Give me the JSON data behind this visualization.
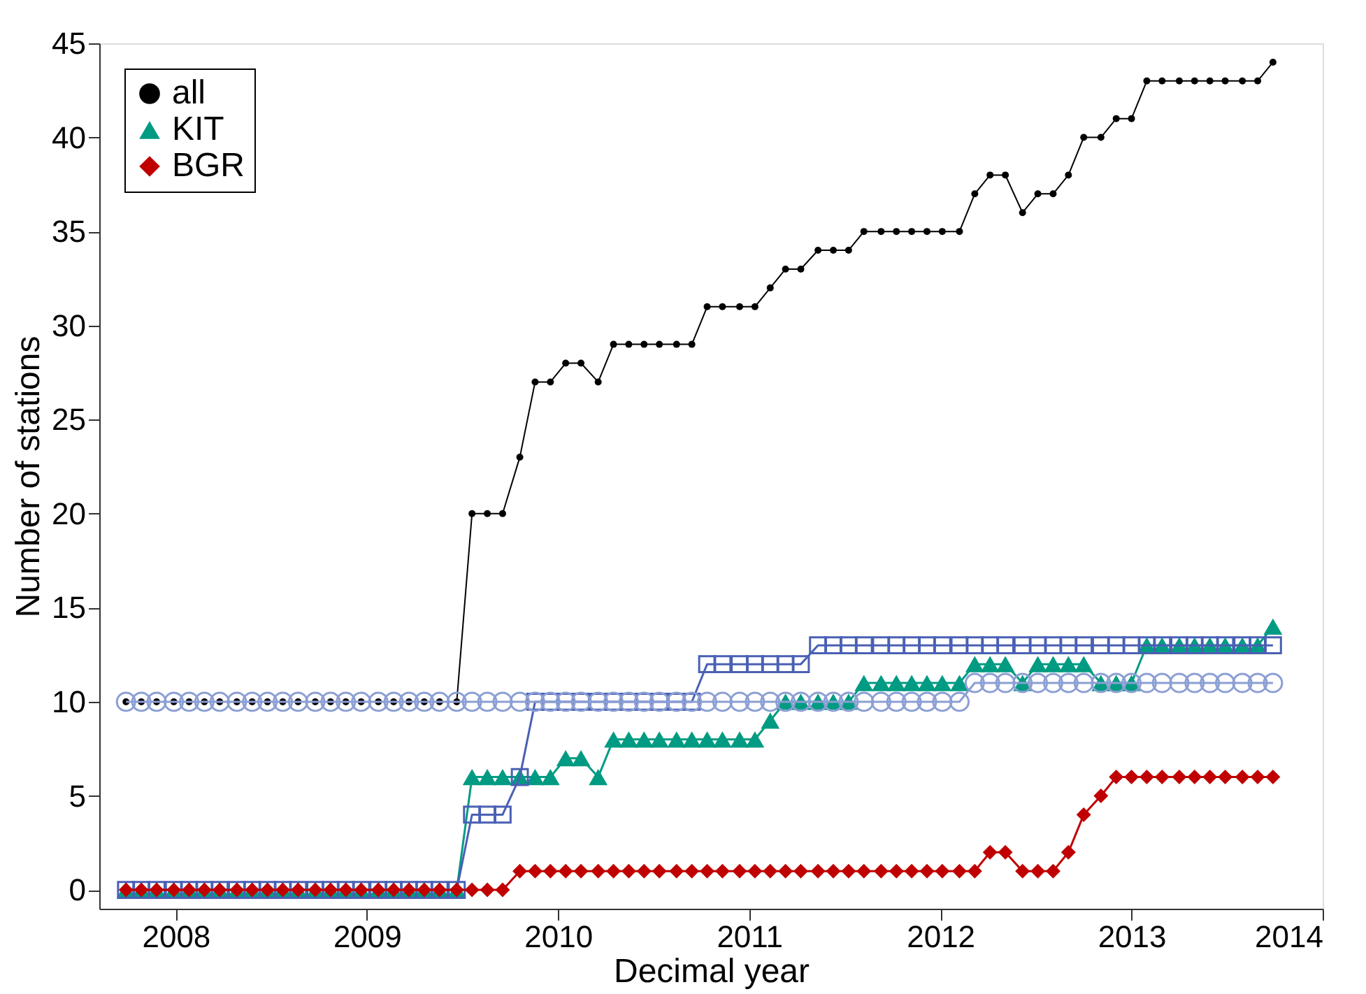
{
  "chart_data": {
    "type": "line",
    "xlabel": "Decimal year",
    "ylabel": "Number of stations",
    "x": [
      2007.74,
      2007.82,
      2007.9,
      2007.99,
      2008.07,
      2008.15,
      2008.23,
      2008.32,
      2008.4,
      2008.48,
      2008.56,
      2008.64,
      2008.73,
      2008.81,
      2008.89,
      2008.97,
      2009.06,
      2009.14,
      2009.22,
      2009.3,
      2009.38,
      2009.47,
      2009.55,
      2009.63,
      2009.71,
      2009.8,
      2009.88,
      2009.96,
      2010.04,
      2010.12,
      2010.21,
      2010.29,
      2010.37,
      2010.45,
      2010.53,
      2010.62,
      2010.7,
      2010.78,
      2010.86,
      2010.95,
      2011.03,
      2011.11,
      2011.19,
      2011.27,
      2011.36,
      2011.44,
      2011.52,
      2011.6,
      2011.69,
      2011.77,
      2011.85,
      2011.93,
      2012.01,
      2012.1,
      2012.18,
      2012.26,
      2012.34,
      2012.43,
      2012.51,
      2012.59,
      2012.67,
      2012.75,
      2012.84,
      2012.92,
      2013.0,
      2013.08,
      2013.16,
      2013.25,
      2013.33,
      2013.41,
      2013.49,
      2013.58,
      2013.66,
      2013.74
    ],
    "series": [
      {
        "name": "all",
        "color": "#000000",
        "marker": "circle",
        "values": [
          10,
          10,
          10,
          10,
          10,
          10,
          10,
          10,
          10,
          10,
          10,
          10,
          10,
          10,
          10,
          10,
          10,
          10,
          10,
          10,
          10,
          10,
          20,
          20,
          20,
          23,
          27,
          27,
          28,
          28,
          27,
          29,
          29,
          29,
          29,
          29,
          29,
          31,
          31,
          31,
          31,
          32,
          33,
          33,
          34,
          34,
          34,
          35,
          35,
          35,
          35,
          35,
          35,
          35,
          37,
          38,
          38,
          36,
          37,
          37,
          38,
          40,
          40,
          41,
          41,
          43,
          43,
          43,
          43,
          43,
          43,
          43,
          43,
          44
        ]
      },
      {
        "name": "KIT",
        "color": "#009b82",
        "marker": "triangle",
        "values": [
          0,
          0,
          0,
          0,
          0,
          0,
          0,
          0,
          0,
          0,
          0,
          0,
          0,
          0,
          0,
          0,
          0,
          0,
          0,
          0,
          0,
          0,
          6,
          6,
          6,
          6,
          6,
          6,
          7,
          7,
          6,
          8,
          8,
          8,
          8,
          8,
          8,
          8,
          8,
          8,
          8,
          9,
          10,
          10,
          10,
          10,
          10,
          11,
          11,
          11,
          11,
          11,
          11,
          11,
          12,
          12,
          12,
          11,
          12,
          12,
          12,
          12,
          11,
          11,
          11,
          13,
          13,
          13,
          13,
          13,
          13,
          13,
          13,
          14
        ]
      },
      {
        "color": "#4a60b4",
        "marker": "square",
        "values": [
          0,
          0,
          0,
          0,
          0,
          0,
          0,
          0,
          0,
          0,
          0,
          0,
          0,
          0,
          0,
          0,
          0,
          0,
          0,
          0,
          0,
          0,
          4,
          4,
          4,
          6,
          10,
          10,
          10,
          10,
          10,
          10,
          10,
          10,
          10,
          10,
          10,
          12,
          12,
          12,
          12,
          12,
          12,
          12,
          13,
          13,
          13,
          13,
          13,
          13,
          13,
          13,
          13,
          13,
          13,
          13,
          13,
          13,
          13,
          13,
          13,
          13,
          13,
          13,
          13,
          13,
          13,
          13,
          13,
          13,
          13,
          13,
          13,
          13
        ]
      },
      {
        "color": "#8c9fd4",
        "marker": "circle",
        "values": [
          10,
          10,
          10,
          10,
          10,
          10,
          10,
          10,
          10,
          10,
          10,
          10,
          10,
          10,
          10,
          10,
          10,
          10,
          10,
          10,
          10,
          10,
          10,
          10,
          10,
          10,
          10,
          10,
          10,
          10,
          10,
          10,
          10,
          10,
          10,
          10,
          10,
          10,
          10,
          10,
          10,
          10,
          10,
          10,
          10,
          10,
          10,
          10,
          10,
          10,
          10,
          10,
          10,
          10,
          11,
          11,
          11,
          11,
          11,
          11,
          11,
          11,
          11,
          11,
          11,
          11,
          11,
          11,
          11,
          11,
          11,
          11,
          11,
          11
        ]
      },
      {
        "name": "BGR",
        "color": "#c00000",
        "marker": "diamond",
        "values": [
          0,
          0,
          0,
          0,
          0,
          0,
          0,
          0,
          0,
          0,
          0,
          0,
          0,
          0,
          0,
          0,
          0,
          0,
          0,
          0,
          0,
          0,
          0,
          0,
          0,
          1,
          1,
          1,
          1,
          1,
          1,
          1,
          1,
          1,
          1,
          1,
          1,
          1,
          1,
          1,
          1,
          1,
          1,
          1,
          1,
          1,
          1,
          1,
          1,
          1,
          1,
          1,
          1,
          1,
          1,
          2,
          2,
          1,
          1,
          1,
          2,
          4,
          5,
          6,
          6,
          6,
          6,
          6,
          6,
          6,
          6,
          6,
          6,
          6
        ]
      }
    ],
    "xlim": [
      2007.6,
      2014
    ],
    "xticks": [
      2008,
      2009,
      2010,
      2011,
      2012,
      2013,
      2014
    ],
    "ylim": [
      -1,
      45
    ],
    "yticks": [
      0,
      5,
      10,
      15,
      20,
      25,
      30,
      35,
      40,
      45
    ],
    "grid": false,
    "legend": "top left"
  }
}
